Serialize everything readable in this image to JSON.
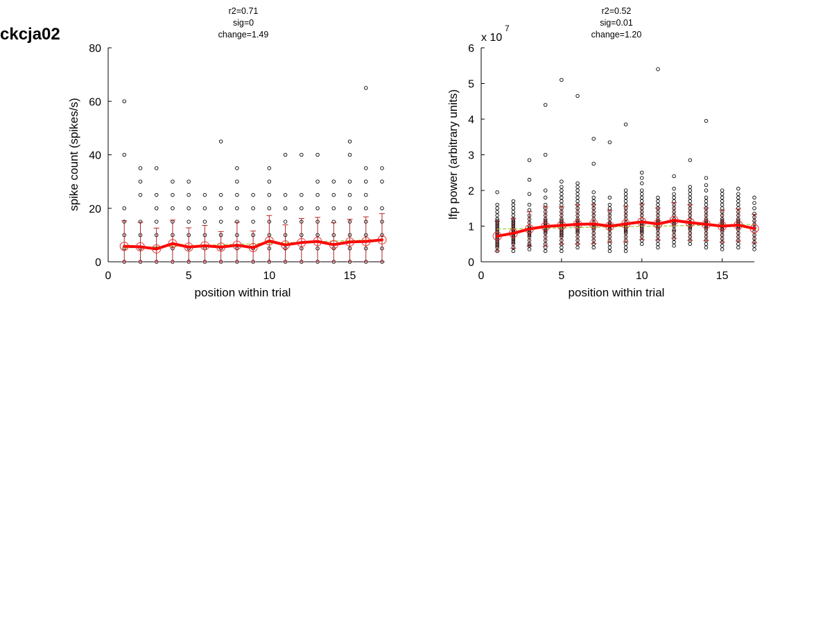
{
  "figure": {
    "title": "ckcja02"
  },
  "chart_data": [
    {
      "type": "scatter",
      "title_lines": [
        "r2=0.71",
        "sig=0",
        "change=1.49"
      ],
      "xlabel": "position within trial",
      "ylabel": "spike count (spikes/s)",
      "xlim": [
        0,
        17
      ],
      "ylim": [
        0,
        80
      ],
      "xticks": [
        0,
        5,
        10,
        15
      ],
      "yticks": [
        0,
        20,
        40,
        60,
        80
      ],
      "xtick_labels": [
        "0",
        "5",
        "10",
        "15"
      ],
      "ytick_labels": [
        "0",
        "20",
        "40",
        "60",
        "80"
      ],
      "exponent": null,
      "grid": false,
      "colors": {
        "points": "#000000",
        "mean": "#ff0000",
        "error": "#b22222",
        "marker": "#e03030",
        "fit": "#9acd32"
      },
      "points": [
        {
          "x": 1,
          "y": [
            0,
            5,
            10,
            15,
            20,
            40,
            60
          ]
        },
        {
          "x": 2,
          "y": [
            0,
            5,
            10,
            15,
            25,
            30,
            35
          ]
        },
        {
          "x": 3,
          "y": [
            0,
            5,
            10,
            15,
            20,
            25,
            35
          ]
        },
        {
          "x": 4,
          "y": [
            0,
            5,
            10,
            15,
            20,
            25,
            30
          ]
        },
        {
          "x": 5,
          "y": [
            0,
            5,
            10,
            15,
            20,
            25,
            30
          ]
        },
        {
          "x": 6,
          "y": [
            0,
            5,
            10,
            15,
            20,
            25
          ]
        },
        {
          "x": 7,
          "y": [
            0,
            5,
            10,
            15,
            20,
            25,
            45
          ]
        },
        {
          "x": 8,
          "y": [
            0,
            5,
            10,
            15,
            20,
            25,
            30,
            35
          ]
        },
        {
          "x": 9,
          "y": [
            0,
            5,
            10,
            15,
            20,
            25
          ]
        },
        {
          "x": 10,
          "y": [
            0,
            5,
            10,
            15,
            20,
            25,
            30,
            35
          ]
        },
        {
          "x": 11,
          "y": [
            0,
            5,
            10,
            15,
            20,
            25,
            40
          ]
        },
        {
          "x": 12,
          "y": [
            0,
            5,
            10,
            15,
            20,
            25,
            40
          ]
        },
        {
          "x": 13,
          "y": [
            0,
            5,
            10,
            15,
            20,
            25,
            30,
            40
          ]
        },
        {
          "x": 14,
          "y": [
            0,
            5,
            10,
            15,
            20,
            25,
            30
          ]
        },
        {
          "x": 15,
          "y": [
            0,
            5,
            10,
            15,
            20,
            25,
            30,
            40,
            45
          ]
        },
        {
          "x": 16,
          "y": [
            0,
            5,
            10,
            15,
            20,
            25,
            30,
            35,
            65
          ]
        },
        {
          "x": 17,
          "y": [
            0,
            5,
            10,
            15,
            20,
            30,
            35
          ]
        }
      ],
      "mean": {
        "x": [
          1,
          2,
          3,
          4,
          5,
          6,
          7,
          8,
          9,
          10,
          11,
          12,
          13,
          14,
          15,
          16,
          17
        ],
        "y": [
          5.8,
          5.6,
          4.8,
          6.8,
          5.5,
          6.0,
          5.5,
          6.2,
          5.3,
          7.8,
          6.3,
          7.2,
          7.6,
          6.4,
          7.4,
          7.6,
          8.2
        ],
        "err": [
          9.5,
          9.2,
          7.8,
          8.8,
          7.2,
          7.6,
          5.8,
          8.6,
          6.2,
          9.5,
          7.5,
          9.0,
          9.0,
          8.2,
          8.5,
          9.2,
          9.8
        ]
      },
      "fit": {
        "x": [
          1,
          17
        ],
        "y": [
          5.2,
          8.3
        ]
      }
    },
    {
      "type": "scatter",
      "title_lines": [
        "r2=0.52",
        "sig=0.01",
        "change=1.20"
      ],
      "xlabel": "position within trial",
      "ylabel": "lfp power (arbitrary units)",
      "xlim": [
        0,
        17
      ],
      "ylim": [
        0,
        6
      ],
      "xticks": [
        0,
        5,
        10,
        15
      ],
      "yticks": [
        0,
        1,
        2,
        3,
        4,
        5,
        6
      ],
      "xtick_labels": [
        "0",
        "5",
        "10",
        "15"
      ],
      "ytick_labels": [
        "0",
        "1",
        "2",
        "3",
        "4",
        "5",
        "6"
      ],
      "exponent": {
        "base": "x 10",
        "power": "7"
      },
      "grid": false,
      "colors": {
        "points": "#000000",
        "mean": "#ff0000",
        "error": "#b22222",
        "marker": "#e03030",
        "fit": "#9acd32"
      },
      "points": [
        {
          "x": 1,
          "y": [
            0.3,
            0.4,
            0.45,
            0.5,
            0.55,
            0.6,
            0.65,
            0.7,
            0.75,
            0.8,
            0.85,
            0.9,
            0.95,
            1.0,
            1.05,
            1.1,
            1.15,
            1.2,
            1.3,
            1.4,
            1.5,
            1.6,
            1.95
          ]
        },
        {
          "x": 2,
          "y": [
            0.3,
            0.4,
            0.5,
            0.55,
            0.6,
            0.65,
            0.7,
            0.75,
            0.8,
            0.85,
            0.9,
            0.95,
            1.0,
            1.05,
            1.1,
            1.15,
            1.2,
            1.3,
            1.4,
            1.5,
            1.6,
            1.7
          ]
        },
        {
          "x": 3,
          "y": [
            0.35,
            0.45,
            0.5,
            0.6,
            0.7,
            0.75,
            0.8,
            0.85,
            0.9,
            0.95,
            1.0,
            1.1,
            1.2,
            1.3,
            1.45,
            1.6,
            1.9,
            2.3,
            2.85
          ]
        },
        {
          "x": 4,
          "y": [
            0.3,
            0.4,
            0.5,
            0.6,
            0.7,
            0.8,
            0.85,
            0.9,
            0.95,
            1.0,
            1.05,
            1.1,
            1.15,
            1.2,
            1.3,
            1.4,
            1.5,
            1.6,
            1.8,
            2.0,
            3.0,
            4.4
          ]
        },
        {
          "x": 5,
          "y": [
            0.3,
            0.4,
            0.5,
            0.6,
            0.7,
            0.75,
            0.8,
            0.85,
            0.9,
            0.95,
            1.0,
            1.05,
            1.1,
            1.15,
            1.2,
            1.3,
            1.4,
            1.5,
            1.6,
            1.7,
            1.8,
            1.9,
            2.0,
            2.1,
            2.25,
            5.1
          ]
        },
        {
          "x": 6,
          "y": [
            0.4,
            0.5,
            0.6,
            0.7,
            0.8,
            0.85,
            0.9,
            0.95,
            1.0,
            1.05,
            1.1,
            1.15,
            1.2,
            1.3,
            1.4,
            1.5,
            1.6,
            1.7,
            1.8,
            1.9,
            2.0,
            2.1,
            2.2,
            4.65
          ]
        },
        {
          "x": 7,
          "y": [
            0.4,
            0.5,
            0.6,
            0.7,
            0.8,
            0.9,
            0.95,
            1.0,
            1.05,
            1.1,
            1.2,
            1.3,
            1.4,
            1.5,
            1.6,
            1.7,
            1.8,
            1.95,
            2.75,
            3.45
          ]
        },
        {
          "x": 8,
          "y": [
            0.3,
            0.4,
            0.5,
            0.6,
            0.7,
            0.8,
            0.9,
            0.95,
            1.0,
            1.05,
            1.1,
            1.2,
            1.3,
            1.4,
            1.5,
            1.6,
            1.8,
            3.35
          ]
        },
        {
          "x": 9,
          "y": [
            0.3,
            0.4,
            0.5,
            0.6,
            0.7,
            0.8,
            0.85,
            0.9,
            0.95,
            1.0,
            1.05,
            1.1,
            1.2,
            1.3,
            1.4,
            1.5,
            1.6,
            1.7,
            1.8,
            1.9,
            2.0,
            3.85
          ]
        },
        {
          "x": 10,
          "y": [
            0.5,
            0.6,
            0.7,
            0.8,
            0.85,
            0.9,
            0.95,
            1.0,
            1.05,
            1.1,
            1.2,
            1.3,
            1.4,
            1.5,
            1.6,
            1.7,
            1.8,
            1.9,
            2.0,
            2.2,
            2.35,
            2.5
          ]
        },
        {
          "x": 11,
          "y": [
            0.4,
            0.5,
            0.6,
            0.7,
            0.8,
            0.9,
            0.95,
            1.0,
            1.05,
            1.1,
            1.15,
            1.2,
            1.3,
            1.4,
            1.5,
            1.6,
            1.7,
            1.8,
            5.4
          ]
        },
        {
          "x": 12,
          "y": [
            0.45,
            0.55,
            0.65,
            0.75,
            0.85,
            0.9,
            1.0,
            1.05,
            1.1,
            1.15,
            1.2,
            1.3,
            1.4,
            1.5,
            1.6,
            1.7,
            1.8,
            1.9,
            2.05,
            2.4
          ]
        },
        {
          "x": 13,
          "y": [
            0.5,
            0.6,
            0.7,
            0.8,
            0.9,
            0.95,
            1.0,
            1.05,
            1.1,
            1.2,
            1.3,
            1.4,
            1.5,
            1.6,
            1.7,
            1.8,
            1.9,
            2.0,
            2.1,
            2.85
          ]
        },
        {
          "x": 14,
          "y": [
            0.4,
            0.5,
            0.6,
            0.7,
            0.8,
            0.9,
            0.95,
            1.0,
            1.05,
            1.1,
            1.15,
            1.2,
            1.3,
            1.4,
            1.5,
            1.6,
            1.7,
            1.8,
            2.0,
            2.15,
            2.35,
            3.95
          ]
        },
        {
          "x": 15,
          "y": [
            0.35,
            0.45,
            0.55,
            0.65,
            0.75,
            0.85,
            0.9,
            0.95,
            1.0,
            1.05,
            1.1,
            1.15,
            1.2,
            1.3,
            1.4,
            1.5,
            1.6,
            1.7,
            1.8,
            1.9,
            2.0
          ]
        },
        {
          "x": 16,
          "y": [
            0.4,
            0.5,
            0.6,
            0.7,
            0.8,
            0.9,
            0.95,
            1.0,
            1.05,
            1.1,
            1.15,
            1.2,
            1.3,
            1.4,
            1.5,
            1.6,
            1.7,
            1.8,
            1.9,
            2.05
          ]
        },
        {
          "x": 17,
          "y": [
            0.35,
            0.45,
            0.55,
            0.65,
            0.75,
            0.85,
            0.95,
            1.05,
            1.15,
            1.25,
            1.35,
            1.5,
            1.65,
            1.8
          ]
        }
      ],
      "mean": {
        "x": [
          1,
          2,
          3,
          4,
          5,
          6,
          7,
          8,
          9,
          10,
          11,
          12,
          13,
          14,
          15,
          16,
          17
        ],
        "y": [
          0.72,
          0.8,
          0.92,
          0.99,
          1.02,
          1.05,
          1.06,
          1.0,
          1.06,
          1.12,
          1.06,
          1.16,
          1.1,
          1.05,
          1.0,
          1.03,
          0.93
        ],
        "err": [
          0.42,
          0.42,
          0.48,
          0.55,
          0.52,
          0.55,
          0.55,
          0.45,
          0.5,
          0.5,
          0.45,
          0.5,
          0.5,
          0.46,
          0.45,
          0.45,
          0.4
        ]
      },
      "fit": {
        "x": [
          1,
          17
        ],
        "y": [
          0.92,
          1.05
        ]
      }
    }
  ]
}
